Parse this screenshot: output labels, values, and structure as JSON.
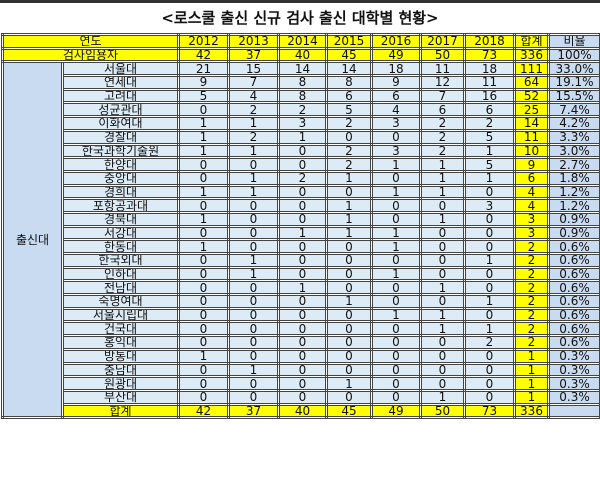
{
  "title": "<로스쿨 출신 신규 검사 출신 대학별 현황>",
  "header": {
    "label": "연도",
    "years": [
      "2012",
      "2013",
      "2014",
      "2015",
      "2016",
      "2017",
      "2018"
    ],
    "total": "합계",
    "ratio": "비율"
  },
  "hires": {
    "label": "검사임용자",
    "values": [
      "42",
      "37",
      "40",
      "45",
      "49",
      "50",
      "73"
    ],
    "total": "336",
    "ratio": "100%"
  },
  "group_label": "출신대",
  "rows": [
    {
      "name": "서울대",
      "values": [
        "21",
        "15",
        "14",
        "14",
        "18",
        "11",
        "18"
      ],
      "total": "111",
      "ratio": "33.0%"
    },
    {
      "name": "연세대",
      "values": [
        "9",
        "7",
        "8",
        "8",
        "9",
        "12",
        "11"
      ],
      "total": "64",
      "ratio": "19.1%"
    },
    {
      "name": "고려대",
      "values": [
        "5",
        "4",
        "8",
        "6",
        "6",
        "7",
        "16"
      ],
      "total": "52",
      "ratio": "15.5%"
    },
    {
      "name": "성균관대",
      "values": [
        "0",
        "2",
        "2",
        "5",
        "4",
        "6",
        "6"
      ],
      "total": "25",
      "ratio": "7.4%"
    },
    {
      "name": "이화여대",
      "values": [
        "1",
        "1",
        "3",
        "2",
        "3",
        "2",
        "2"
      ],
      "total": "14",
      "ratio": "4.2%"
    },
    {
      "name": "경찰대",
      "values": [
        "1",
        "2",
        "1",
        "0",
        "0",
        "2",
        "5"
      ],
      "total": "11",
      "ratio": "3.3%"
    },
    {
      "name": "한국과학기술원",
      "values": [
        "1",
        "1",
        "0",
        "2",
        "3",
        "2",
        "1"
      ],
      "total": "10",
      "ratio": "3.0%"
    },
    {
      "name": "한양대",
      "values": [
        "0",
        "0",
        "0",
        "2",
        "1",
        "1",
        "5"
      ],
      "total": "9",
      "ratio": "2.7%"
    },
    {
      "name": "중앙대",
      "values": [
        "0",
        "1",
        "2",
        "1",
        "0",
        "1",
        "1"
      ],
      "total": "6",
      "ratio": "1.8%"
    },
    {
      "name": "경희대",
      "values": [
        "1",
        "1",
        "0",
        "0",
        "1",
        "1",
        "0"
      ],
      "total": "4",
      "ratio": "1.2%"
    },
    {
      "name": "포항공과대",
      "values": [
        "0",
        "0",
        "0",
        "1",
        "0",
        "0",
        "3"
      ],
      "total": "4",
      "ratio": "1.2%"
    },
    {
      "name": "경북대",
      "values": [
        "1",
        "0",
        "0",
        "1",
        "0",
        "1",
        "0"
      ],
      "total": "3",
      "ratio": "0.9%"
    },
    {
      "name": "서강대",
      "values": [
        "0",
        "0",
        "1",
        "1",
        "1",
        "0",
        "0"
      ],
      "total": "3",
      "ratio": "0.9%"
    },
    {
      "name": "한동대",
      "values": [
        "1",
        "0",
        "0",
        "0",
        "1",
        "0",
        "0"
      ],
      "total": "2",
      "ratio": "0.6%"
    },
    {
      "name": "한국외대",
      "values": [
        "0",
        "1",
        "0",
        "0",
        "0",
        "0",
        "1"
      ],
      "total": "2",
      "ratio": "0.6%"
    },
    {
      "name": "인하대",
      "values": [
        "0",
        "1",
        "0",
        "0",
        "1",
        "0",
        "0"
      ],
      "total": "2",
      "ratio": "0.6%"
    },
    {
      "name": "전남대",
      "values": [
        "0",
        "0",
        "1",
        "0",
        "0",
        "1",
        "0"
      ],
      "total": "2",
      "ratio": "0.6%"
    },
    {
      "name": "숙명여대",
      "values": [
        "0",
        "0",
        "0",
        "1",
        "0",
        "0",
        "1"
      ],
      "total": "2",
      "ratio": "0.6%"
    },
    {
      "name": "서울시립대",
      "values": [
        "0",
        "0",
        "0",
        "0",
        "1",
        "1",
        "0"
      ],
      "total": "2",
      "ratio": "0.6%"
    },
    {
      "name": "건국대",
      "values": [
        "0",
        "0",
        "0",
        "0",
        "0",
        "1",
        "1"
      ],
      "total": "2",
      "ratio": "0.6%"
    },
    {
      "name": "홍익대",
      "values": [
        "0",
        "0",
        "0",
        "0",
        "0",
        "0",
        "2"
      ],
      "total": "2",
      "ratio": "0.6%"
    },
    {
      "name": "방통대",
      "values": [
        "1",
        "0",
        "0",
        "0",
        "0",
        "0",
        "0"
      ],
      "total": "1",
      "ratio": "0.3%"
    },
    {
      "name": "충남대",
      "values": [
        "0",
        "1",
        "0",
        "0",
        "0",
        "0",
        "0"
      ],
      "total": "1",
      "ratio": "0.3%"
    },
    {
      "name": "원광대",
      "values": [
        "0",
        "0",
        "0",
        "1",
        "0",
        "0",
        "0"
      ],
      "total": "1",
      "ratio": "0.3%"
    },
    {
      "name": "부산대",
      "values": [
        "0",
        "0",
        "0",
        "0",
        "0",
        "1",
        "0"
      ],
      "total": "1",
      "ratio": "0.3%"
    }
  ],
  "sum": {
    "label": "합계",
    "values": [
      "42",
      "37",
      "40",
      "45",
      "49",
      "50",
      "73"
    ],
    "total": "336",
    "ratio": ""
  },
  "colors": {
    "header": "#ffff00",
    "body": "#dcebf5",
    "accent": "#c9dbf0"
  }
}
